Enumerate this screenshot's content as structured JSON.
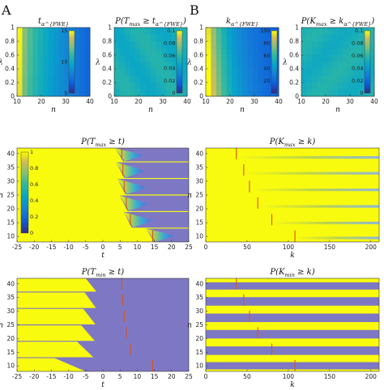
{
  "figure": {
    "panel_labels": [
      "A",
      "B"
    ]
  },
  "chart_data": [
    {
      "id": "a1",
      "type": "heatmap",
      "title": "t_α^{FWE}",
      "xlabel": "n",
      "ylabel": "λ",
      "xlim": [
        10,
        40
      ],
      "ylim": [
        0,
        1
      ],
      "xticks": [
        "10",
        "20",
        "30",
        "40"
      ],
      "yticks": [
        "0",
        "0.2",
        "0.4",
        "0.6",
        "0.8",
        "1"
      ],
      "colorbar": {
        "range": [
          5,
          15
        ],
        "ticks": [
          "5",
          "10",
          "15"
        ]
      },
      "description_values": "t decreases from ~15 at n=10 to ~6 at n=40, weak dependence on λ"
    },
    {
      "id": "a2",
      "type": "heatmap",
      "title": "P(T_max ≥ t_α^{FWE})",
      "xlabel": "n",
      "ylabel": "λ",
      "xlim": [
        10,
        40
      ],
      "ylim": [
        0,
        1
      ],
      "xticks": [
        "10",
        "20",
        "30",
        "40"
      ],
      "yticks": [
        "0",
        "0.2",
        "0.4",
        "0.6",
        "0.8",
        "1"
      ],
      "colorbar": {
        "range": [
          0,
          0.1
        ],
        "ticks": [
          "0",
          "0.02",
          "0.04",
          "0.06",
          "0.08",
          "0.1"
        ]
      }
    },
    {
      "id": "b1",
      "type": "heatmap",
      "title": "k_α^{FWE}",
      "xlabel": "n",
      "ylabel": "λ",
      "xlim": [
        10,
        40
      ],
      "ylim": [
        0,
        1
      ],
      "xticks": [
        "10",
        "20",
        "30",
        "40"
      ],
      "yticks": [
        "0",
        "0.2",
        "0.4",
        "0.6",
        "0.8",
        "1"
      ],
      "colorbar": {
        "range": [
          0,
          100
        ],
        "ticks": [
          "20",
          "40",
          "60",
          "80",
          "100"
        ]
      }
    },
    {
      "id": "b2",
      "type": "heatmap",
      "title": "P(K_max ≥ k_α^{FWE})",
      "xlabel": "n",
      "ylabel": "λ",
      "xlim": [
        10,
        40
      ],
      "ylim": [
        0,
        1
      ],
      "xticks": [
        "10",
        "20",
        "30",
        "40"
      ],
      "yticks": [
        "0",
        "0.2",
        "0.4",
        "0.6",
        "0.8",
        "1"
      ],
      "colorbar": {
        "range": [
          0,
          0.1
        ],
        "ticks": [
          "0",
          "0.02",
          "0.04",
          "0.06",
          "0.08",
          "0.1"
        ]
      }
    },
    {
      "id": "a3",
      "type": "heatmap",
      "title": "P(T_max ≥ t)",
      "xlabel": "t",
      "ylabel": "n",
      "xlim": [
        -25,
        25
      ],
      "ylim": [
        8,
        42
      ],
      "xticks": [
        "-25",
        "-20",
        "-15",
        "-10",
        "-5",
        "0",
        "5",
        "10",
        "15",
        "20",
        "25"
      ],
      "yticks": [
        "10",
        "15",
        "20",
        "25",
        "30",
        "35",
        "40"
      ],
      "colorbar": {
        "range": [
          0,
          1
        ],
        "ticks": [
          "0",
          "0.2",
          "0.4",
          "0.6",
          "0.8",
          "1"
        ]
      },
      "threshold_n": [
        10,
        16,
        22,
        28,
        34,
        40
      ],
      "threshold_t": [
        14.5,
        8,
        6.8,
        6.2,
        5.8,
        5.5
      ]
    },
    {
      "id": "b3",
      "type": "heatmap",
      "title": "P(K_max ≥ k)",
      "xlabel": "k",
      "ylabel": "n",
      "xlim": [
        0,
        210
      ],
      "ylim": [
        8,
        42
      ],
      "xticks": [
        "0",
        "50",
        "100",
        "150",
        "200"
      ],
      "yticks": [
        "10",
        "15",
        "20",
        "25",
        "30",
        "35",
        "40"
      ],
      "threshold_n": [
        10,
        16,
        22,
        28,
        34,
        40
      ],
      "threshold_k": [
        108,
        80,
        63,
        53,
        46,
        37
      ]
    },
    {
      "id": "a4",
      "type": "heatmap",
      "title": "P(T_min ≥ t)",
      "xlabel": "t",
      "ylabel": "n",
      "xlim": [
        -25,
        25
      ],
      "ylim": [
        8,
        42
      ],
      "xticks": [
        "-25",
        "-20",
        "-15",
        "-10",
        "-5",
        "0",
        "5",
        "10",
        "15",
        "20",
        "25"
      ],
      "yticks": [
        "10",
        "15",
        "20",
        "25",
        "30",
        "35",
        "40"
      ],
      "threshold_n": [
        10,
        16,
        22,
        28,
        34,
        40
      ],
      "threshold_t": [
        14.5,
        8,
        6.8,
        6.2,
        5.8,
        5.5
      ]
    },
    {
      "id": "b4",
      "type": "heatmap",
      "title": "P(K_min ≥ k)",
      "xlabel": "k",
      "ylabel": "n",
      "xlim": [
        0,
        210
      ],
      "ylim": [
        8,
        42
      ],
      "xticks": [
        "0",
        "50",
        "100",
        "150",
        "200"
      ],
      "yticks": [
        "10",
        "15",
        "20",
        "25",
        "30",
        "35",
        "40"
      ],
      "threshold_n": [
        10,
        16,
        22,
        28,
        34,
        40
      ],
      "threshold_k": [
        108,
        80,
        63,
        53,
        46,
        37
      ]
    }
  ],
  "colors": {
    "yellow": "#f9fb0e",
    "purple": "#7e78c4",
    "teal": "#3fc0b5",
    "red": "#d95319"
  }
}
